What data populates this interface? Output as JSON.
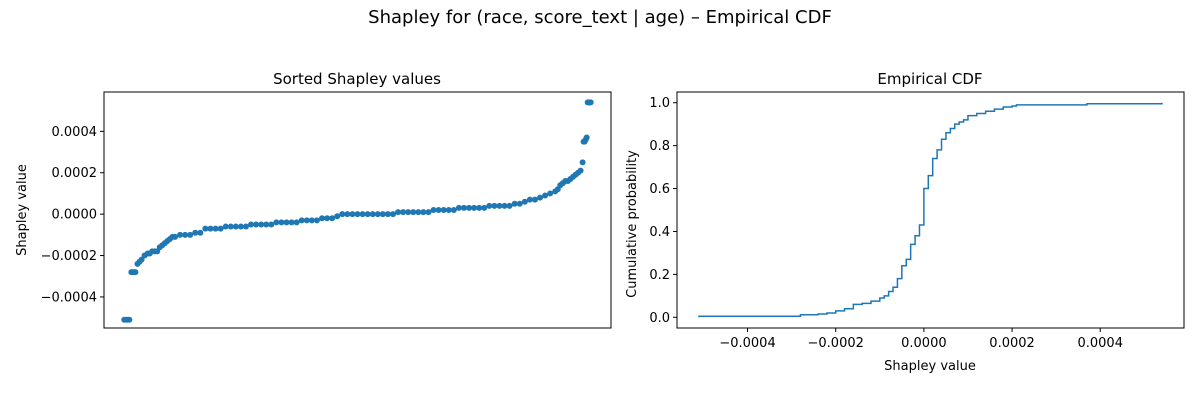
{
  "figure": {
    "suptitle": "Shapley for (race, score_text | age) – Empirical CDF"
  },
  "colors": {
    "series": "#1f77b4",
    "axes": "#000000",
    "background": "#ffffff"
  },
  "chart_data": [
    {
      "type": "scatter",
      "title": "Sorted Shapley values",
      "xlabel": "",
      "ylabel": "Shapley value",
      "x_ticks_visible": false,
      "xlim": [
        0,
        1
      ],
      "ylim": [
        -0.00055,
        0.00059
      ],
      "yticks": [
        -0.0004,
        -0.0002,
        0.0,
        0.0002,
        0.0004
      ],
      "ytick_labels": [
        "−0.0004",
        "−0.0002",
        "0.0000",
        "0.0002",
        "0.0004"
      ],
      "grid": false,
      "note_x": "x is the sorted rank as a fraction of all observations",
      "points": [
        [
          0.04,
          -0.00051
        ],
        [
          0.045,
          -0.00051
        ],
        [
          0.05,
          -0.00051
        ],
        [
          0.054,
          -0.00028
        ],
        [
          0.058,
          -0.00028
        ],
        [
          0.062,
          -0.00028
        ],
        [
          0.066,
          -0.00024
        ],
        [
          0.07,
          -0.00023
        ],
        [
          0.074,
          -0.00022
        ],
        [
          0.08,
          -0.0002
        ],
        [
          0.086,
          -0.00019
        ],
        [
          0.09,
          -0.00019
        ],
        [
          0.095,
          -0.00018
        ],
        [
          0.1,
          -0.00018
        ],
        [
          0.105,
          -0.00018
        ],
        [
          0.11,
          -0.00016
        ],
        [
          0.115,
          -0.00015
        ],
        [
          0.12,
          -0.00014
        ],
        [
          0.125,
          -0.00013
        ],
        [
          0.13,
          -0.00012
        ],
        [
          0.135,
          -0.00011
        ],
        [
          0.14,
          -0.00011
        ],
        [
          0.15,
          -0.0001
        ],
        [
          0.16,
          -0.0001
        ],
        [
          0.17,
          -0.0001
        ],
        [
          0.18,
          -9e-05
        ],
        [
          0.19,
          -9e-05
        ],
        [
          0.2,
          -7e-05
        ],
        [
          0.21,
          -7e-05
        ],
        [
          0.22,
          -7e-05
        ],
        [
          0.23,
          -7e-05
        ],
        [
          0.24,
          -6e-05
        ],
        [
          0.25,
          -6e-05
        ],
        [
          0.26,
          -6e-05
        ],
        [
          0.27,
          -6e-05
        ],
        [
          0.28,
          -6e-05
        ],
        [
          0.29,
          -5e-05
        ],
        [
          0.3,
          -5e-05
        ],
        [
          0.31,
          -5e-05
        ],
        [
          0.32,
          -5e-05
        ],
        [
          0.33,
          -5e-05
        ],
        [
          0.34,
          -4e-05
        ],
        [
          0.35,
          -4e-05
        ],
        [
          0.36,
          -4e-05
        ],
        [
          0.37,
          -4e-05
        ],
        [
          0.38,
          -4e-05
        ],
        [
          0.39,
          -3e-05
        ],
        [
          0.4,
          -3e-05
        ],
        [
          0.41,
          -3e-05
        ],
        [
          0.42,
          -3e-05
        ],
        [
          0.43,
          -2e-05
        ],
        [
          0.44,
          -2e-05
        ],
        [
          0.45,
          -2e-05
        ],
        [
          0.46,
          -1e-05
        ],
        [
          0.47,
          0.0
        ],
        [
          0.48,
          0.0
        ],
        [
          0.49,
          0.0
        ],
        [
          0.5,
          0.0
        ],
        [
          0.51,
          0.0
        ],
        [
          0.52,
          0.0
        ],
        [
          0.53,
          0.0
        ],
        [
          0.54,
          0.0
        ],
        [
          0.55,
          0.0
        ],
        [
          0.56,
          0.0
        ],
        [
          0.57,
          0.0
        ],
        [
          0.58,
          1e-05
        ],
        [
          0.59,
          1e-05
        ],
        [
          0.6,
          1e-05
        ],
        [
          0.61,
          1e-05
        ],
        [
          0.62,
          1e-05
        ],
        [
          0.63,
          1e-05
        ],
        [
          0.64,
          1e-05
        ],
        [
          0.65,
          2e-05
        ],
        [
          0.66,
          2e-05
        ],
        [
          0.67,
          2e-05
        ],
        [
          0.68,
          2e-05
        ],
        [
          0.69,
          2e-05
        ],
        [
          0.7,
          3e-05
        ],
        [
          0.71,
          3e-05
        ],
        [
          0.72,
          3e-05
        ],
        [
          0.73,
          3e-05
        ],
        [
          0.74,
          3e-05
        ],
        [
          0.75,
          3e-05
        ],
        [
          0.76,
          4e-05
        ],
        [
          0.77,
          4e-05
        ],
        [
          0.78,
          4e-05
        ],
        [
          0.79,
          4e-05
        ],
        [
          0.8,
          4e-05
        ],
        [
          0.81,
          5e-05
        ],
        [
          0.82,
          5e-05
        ],
        [
          0.83,
          6e-05
        ],
        [
          0.84,
          7e-05
        ],
        [
          0.85,
          7e-05
        ],
        [
          0.86,
          8e-05
        ],
        [
          0.87,
          9e-05
        ],
        [
          0.88,
          0.0001
        ],
        [
          0.89,
          0.00011
        ],
        [
          0.895,
          0.00012
        ],
        [
          0.9,
          0.00014
        ],
        [
          0.905,
          0.00015
        ],
        [
          0.91,
          0.00016
        ],
        [
          0.915,
          0.00016
        ],
        [
          0.92,
          0.00017
        ],
        [
          0.925,
          0.00018
        ],
        [
          0.93,
          0.00019
        ],
        [
          0.935,
          0.0002
        ],
        [
          0.94,
          0.00021
        ],
        [
          0.944,
          0.00025
        ],
        [
          0.946,
          0.00035
        ],
        [
          0.948,
          0.00035
        ],
        [
          0.95,
          0.00036
        ],
        [
          0.952,
          0.00037
        ],
        [
          0.954,
          0.00054
        ],
        [
          0.956,
          0.00054
        ],
        [
          0.958,
          0.00054
        ],
        [
          0.96,
          0.00054
        ]
      ]
    },
    {
      "type": "line",
      "step": true,
      "title": "Empirical CDF",
      "xlabel": "Shapley value",
      "ylabel": "Cumulative probability",
      "xlim": [
        -0.00056,
        0.00059
      ],
      "ylim": [
        -0.05,
        1.05
      ],
      "xticks": [
        -0.0004,
        -0.0002,
        0.0,
        0.0002,
        0.0004
      ],
      "xtick_labels": [
        "−0.0004",
        "−0.0002",
        "0.0000",
        "0.0002",
        "0.0004"
      ],
      "yticks": [
        0.0,
        0.2,
        0.4,
        0.6,
        0.8,
        1.0
      ],
      "ytick_labels": [
        "0.0",
        "0.2",
        "0.4",
        "0.6",
        "0.8",
        "1.0"
      ],
      "grid": false,
      "points": [
        [
          -0.00051,
          0.0
        ],
        [
          -0.00051,
          0.005
        ],
        [
          -0.00028,
          0.005
        ],
        [
          -0.00028,
          0.012
        ],
        [
          -0.00024,
          0.015
        ],
        [
          -0.00022,
          0.02
        ],
        [
          -0.0002,
          0.03
        ],
        [
          -0.00018,
          0.04
        ],
        [
          -0.00016,
          0.06
        ],
        [
          -0.00014,
          0.065
        ],
        [
          -0.00012,
          0.075
        ],
        [
          -0.0001,
          0.09
        ],
        [
          -9e-05,
          0.1
        ],
        [
          -8e-05,
          0.12
        ],
        [
          -7e-05,
          0.14
        ],
        [
          -6e-05,
          0.18
        ],
        [
          -5e-05,
          0.24
        ],
        [
          -4e-05,
          0.27
        ],
        [
          -3e-05,
          0.34
        ],
        [
          -2e-05,
          0.38
        ],
        [
          -1e-05,
          0.43
        ],
        [
          0.0,
          0.47
        ],
        [
          0.0,
          0.6
        ],
        [
          1e-05,
          0.66
        ],
        [
          2e-05,
          0.74
        ],
        [
          3e-05,
          0.78
        ],
        [
          4e-05,
          0.83
        ],
        [
          5e-05,
          0.86
        ],
        [
          6e-05,
          0.88
        ],
        [
          7e-05,
          0.9
        ],
        [
          8e-05,
          0.91
        ],
        [
          9e-05,
          0.92
        ],
        [
          0.0001,
          0.94
        ],
        [
          0.00012,
          0.95
        ],
        [
          0.00014,
          0.96
        ],
        [
          0.00016,
          0.97
        ],
        [
          0.00018,
          0.98
        ],
        [
          0.0002,
          0.985
        ],
        [
          0.00021,
          0.99
        ],
        [
          0.00035,
          0.99
        ],
        [
          0.00037,
          0.995
        ],
        [
          0.00054,
          0.995
        ],
        [
          0.00054,
          1.0
        ]
      ]
    }
  ]
}
